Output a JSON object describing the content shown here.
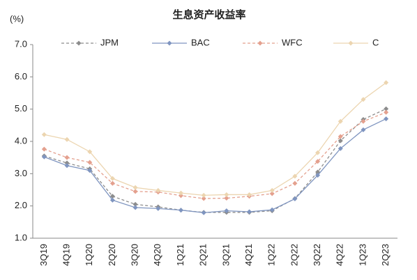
{
  "chart_data": {
    "type": "line",
    "title": "生息资产收益率",
    "y_unit": "(%)",
    "categories": [
      "3Q19",
      "4Q19",
      "1Q20",
      "2Q20",
      "3Q20",
      "4Q20",
      "1Q21",
      "2Q21",
      "3Q21",
      "4Q21",
      "1Q22",
      "2Q22",
      "3Q22",
      "4Q22",
      "1Q23",
      "2Q23"
    ],
    "series": [
      {
        "name": "JPM",
        "color": "#8c8c8c",
        "dashed": true,
        "values": [
          3.55,
          3.33,
          3.15,
          2.3,
          2.05,
          1.97,
          1.87,
          1.8,
          1.8,
          1.8,
          1.85,
          2.23,
          3.05,
          4.02,
          4.68,
          5.01
        ]
      },
      {
        "name": "BAC",
        "color": "#7f95c0",
        "dashed": false,
        "values": [
          3.52,
          3.25,
          3.1,
          2.18,
          1.95,
          1.92,
          1.87,
          1.79,
          1.85,
          1.82,
          1.88,
          2.22,
          2.95,
          3.78,
          4.36,
          4.7
        ]
      },
      {
        "name": "WFC",
        "color": "#e4a08e",
        "dashed": true,
        "values": [
          3.76,
          3.5,
          3.35,
          2.7,
          2.45,
          2.43,
          2.32,
          2.23,
          2.24,
          2.3,
          2.38,
          2.7,
          3.38,
          4.15,
          4.62,
          4.9
        ]
      },
      {
        "name": "C",
        "color": "#ecd5b0",
        "dashed": false,
        "values": [
          4.21,
          4.06,
          3.68,
          2.85,
          2.57,
          2.48,
          2.4,
          2.33,
          2.35,
          2.35,
          2.48,
          2.92,
          3.65,
          4.62,
          5.3,
          5.82
        ]
      }
    ],
    "ylim": [
      1,
      7
    ],
    "yticks": [
      {
        "value": 1,
        "label": "1.0"
      },
      {
        "value": 2,
        "label": "2.0"
      },
      {
        "value": 3,
        "label": "3.0"
      },
      {
        "value": 4,
        "label": "4.0"
      },
      {
        "value": 5,
        "label": "5.0"
      },
      {
        "value": 6,
        "label": "6.0"
      },
      {
        "value": 7,
        "label": "7.0"
      }
    ],
    "grid": false,
    "legend": "top"
  }
}
